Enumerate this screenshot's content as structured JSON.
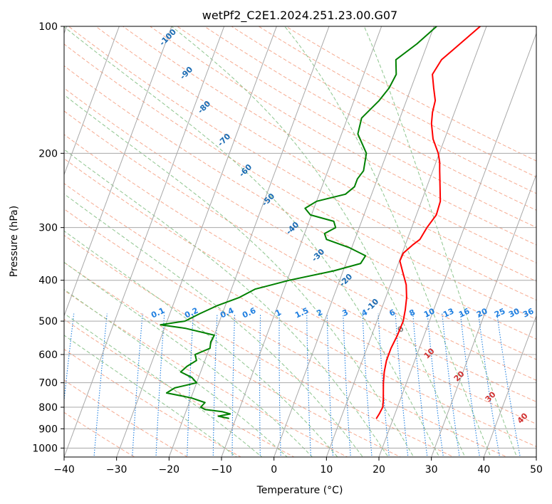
{
  "chart_data": {
    "type": "line",
    "title": "wetPf2_C2E1.2024.251.23.00.G07",
    "xlabel": "Temperature (°C)",
    "ylabel": "Pressure (hPa)",
    "xlim": [
      -40,
      50
    ],
    "ylim": [
      1050,
      100
    ],
    "y_scale": "log",
    "x_ticks": [
      -40,
      -30,
      -20,
      -10,
      0,
      10,
      20,
      30,
      40,
      50
    ],
    "y_ticks": [
      100,
      200,
      300,
      400,
      500,
      600,
      700,
      800,
      900,
      1000
    ],
    "grid": true,
    "series": [
      {
        "color": "#ff0000",
        "pressure": [
          850,
          830,
          800,
          770,
          740,
          700,
          660,
          620,
          580,
          540,
          500,
          470,
          440,
          410,
          380,
          360,
          345,
          330,
          320,
          300,
          280,
          260,
          240,
          220,
          210,
          200,
          185,
          170,
          160,
          150,
          140,
          130,
          120,
          110,
          100
        ],
        "temperature": [
          16.8,
          17.0,
          17.2,
          16.8,
          16.3,
          15.6,
          15.0,
          14.6,
          14.6,
          14.9,
          15.0,
          14.6,
          14.0,
          13.0,
          11.3,
          10.1,
          10.2,
          11.4,
          12.4,
          12.9,
          13.8,
          13.6,
          12.5,
          11.3,
          10.7,
          9.8,
          7.8,
          6.4,
          5.8,
          5.5,
          4.3,
          3.1,
          3.8,
          6.2,
          8.8
        ]
      },
      {
        "color": "#008000",
        "pressure": [
          850,
          840,
          830,
          820,
          810,
          800,
          780,
          760,
          740,
          720,
          700,
          680,
          660,
          640,
          620,
          600,
          580,
          560,
          540,
          520,
          510,
          500,
          480,
          460,
          440,
          420,
          400,
          380,
          365,
          350,
          335,
          320,
          310,
          300,
          290,
          280,
          270,
          260,
          250,
          240,
          230,
          220,
          200,
          180,
          165,
          150,
          140,
          130,
          120,
          110,
          100
        ],
        "temperature": [
          -11.4,
          -13.5,
          -11.4,
          -13.0,
          -16.5,
          -17.5,
          -17.0,
          -20.0,
          -25.0,
          -23.8,
          -20.0,
          -21.3,
          -23.8,
          -23.0,
          -21.6,
          -22.3,
          -19.9,
          -20.2,
          -20.0,
          -26.0,
          -31.0,
          -26.6,
          -24.3,
          -21.6,
          -18.0,
          -15.5,
          -9.6,
          -1.8,
          2.8,
          3.2,
          -0.4,
          -5.4,
          -6.2,
          -4.5,
          -5.3,
          -10.2,
          -11.7,
          -10.0,
          -5.0,
          -3.8,
          -3.8,
          -3.2,
          -3.9,
          -6.9,
          -7.3,
          -5.2,
          -4.2,
          -3.8,
          -4.9,
          -2.0,
          0.5
        ]
      }
    ],
    "annotations": {
      "dry_adiabats": [
        "-100",
        "-90",
        "-80",
        "-70",
        "-60",
        "-50",
        "-40",
        "-30",
        "-20",
        "-10",
        "0",
        "10",
        "20",
        "30",
        "40"
      ],
      "mixing_ratios": [
        "0.1",
        "0.2",
        "0.4",
        "0.6",
        "1",
        "1.5",
        "2",
        "3",
        "4",
        "6",
        "8",
        "10",
        "13",
        "16",
        "20",
        "25",
        "30",
        "36"
      ]
    }
  },
  "colors": {
    "temperature": "#ff0000",
    "dewpoint": "#008000",
    "isotherms": "#a8a8a8",
    "dry_adiabats": "#f6aa90",
    "moist_adiabats": "#8ec58e",
    "mixing_ratio_lines": "#1f7fe0",
    "label_cold": "#1a6bb3",
    "label_warm": "#d03030"
  }
}
